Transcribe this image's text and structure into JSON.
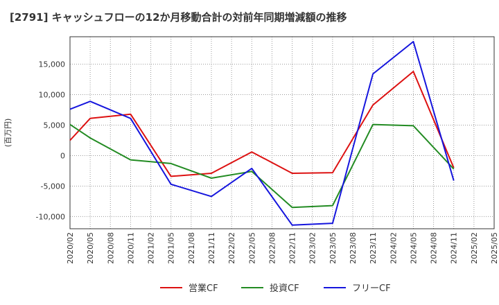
{
  "chart_data": {
    "type": "line",
    "title": "[2791]  キャッシュフローの12か月移動合計の対前年同期増減額の推移",
    "ylabel": "(百万円)",
    "xlabel": "",
    "ylim": [
      -12000,
      19500
    ],
    "yticks": [
      15000,
      10000,
      5000,
      0,
      -5000,
      -10000
    ],
    "ytick_labels": [
      "15,000",
      "10,000",
      "5,000",
      "0",
      "-5,000",
      "-10,000"
    ],
    "categories": [
      "2020/02",
      "2020/05",
      "2020/08",
      "2020/11",
      "2021/02",
      "2021/05",
      "2021/08",
      "2021/11",
      "2022/02",
      "2022/05",
      "2022/08",
      "2022/11",
      "2023/02",
      "2023/05",
      "2023/08",
      "2023/11",
      "2024/02",
      "2024/05",
      "2024/08",
      "2024/11",
      "2025/02",
      "2025/05"
    ],
    "grid": true,
    "legend_position": "bottom-center",
    "series": [
      {
        "name": "営業CF",
        "color": "#dd1111",
        "values": [
          2500,
          6100,
          null,
          6800,
          null,
          -3400,
          null,
          -2900,
          null,
          600,
          null,
          -2900,
          null,
          -2800,
          null,
          8300,
          null,
          13800,
          null,
          -2000,
          null,
          null
        ]
      },
      {
        "name": "投資CF",
        "color": "#228b22",
        "values": [
          5100,
          2900,
          null,
          -700,
          null,
          -1300,
          null,
          -3700,
          null,
          -2600,
          null,
          -8500,
          null,
          -8200,
          null,
          5100,
          null,
          4900,
          null,
          -2200,
          null,
          null
        ]
      },
      {
        "name": "フリーCF",
        "color": "#1515dd",
        "values": [
          7600,
          8900,
          null,
          6100,
          null,
          -4700,
          null,
          -6700,
          null,
          -2100,
          null,
          -11400,
          null,
          -11100,
          null,
          13400,
          null,
          18700,
          null,
          -4100,
          null,
          null
        ]
      }
    ]
  }
}
